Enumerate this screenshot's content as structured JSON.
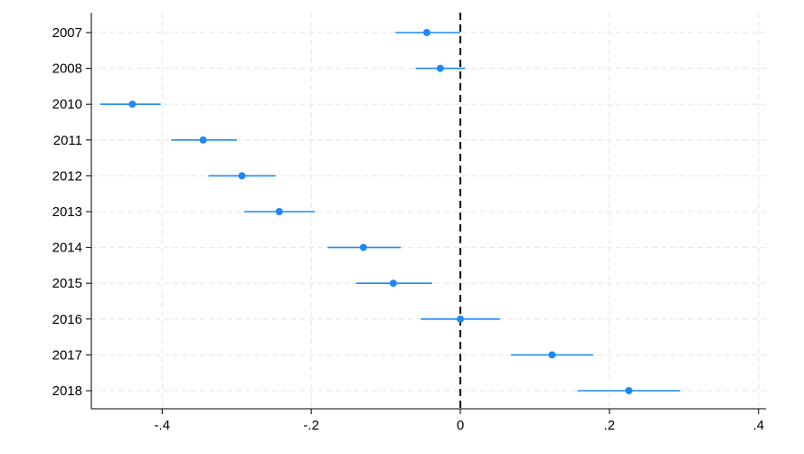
{
  "chart_data": {
    "type": "scatter",
    "subtype": "coefficient-plot-with-confidence-intervals",
    "orientation": "horizontal",
    "title": "",
    "xlabel": "",
    "ylabel": "",
    "categories": [
      "2007",
      "2008",
      "2010",
      "2011",
      "2012",
      "2013",
      "2014",
      "2015",
      "2016",
      "2017",
      "2018"
    ],
    "estimates": [
      -0.045,
      -0.027,
      -0.44,
      -0.345,
      -0.293,
      -0.243,
      -0.13,
      -0.09,
      0.0,
      0.123,
      0.226
    ],
    "ci_low": [
      -0.087,
      -0.06,
      -0.483,
      -0.388,
      -0.338,
      -0.29,
      -0.178,
      -0.14,
      -0.053,
      0.068,
      0.157
    ],
    "ci_high": [
      0.0,
      0.006,
      -0.402,
      -0.3,
      -0.248,
      -0.195,
      -0.08,
      -0.038,
      0.053,
      0.178,
      0.295
    ],
    "xlim": [
      -0.495,
      0.41
    ],
    "xticks": [
      -0.4,
      -0.2,
      0,
      0.2,
      0.4
    ],
    "xtick_labels": [
      "-.4",
      "-.2",
      "0",
      ".2",
      ".4"
    ],
    "reference_line": {
      "x": 0,
      "style": "dashed"
    },
    "grid": true,
    "legend": "none",
    "colors": {
      "marker": "#1e88f5",
      "ci_line": "#1e88f5",
      "grid": "#e6e6e6",
      "reference_line": "#000000",
      "axis": "#000000"
    }
  }
}
